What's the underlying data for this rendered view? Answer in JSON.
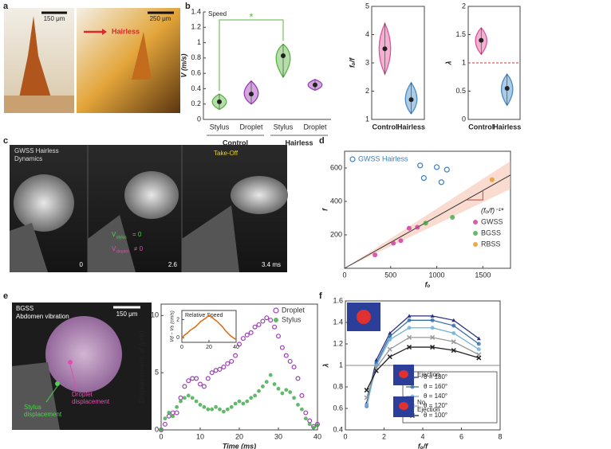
{
  "panel_labels": [
    "a",
    "b",
    "c",
    "d",
    "e",
    "f"
  ],
  "photos": {
    "a_scale1": "150 μm",
    "a_scale2": "250 μm",
    "a_hairless": "Hairless",
    "c_title": [
      "GWSS Hairless",
      "Dynamics"
    ],
    "c_takeoff": "Take-Off",
    "c_vs": [
      "V",
      "stylus",
      "= 0"
    ],
    "c_vd": [
      "V",
      "droplet",
      "≠ 0"
    ],
    "c_times": [
      "0",
      "2.6",
      "3.4 ms"
    ],
    "e_title": [
      "BGSS",
      "Abdomen vibration"
    ],
    "e_scale": "150 μm",
    "e_stylus": [
      "Stylus",
      "displacement"
    ],
    "e_droplet": [
      "Droplet",
      "displacement"
    ]
  },
  "chart_data": [
    {
      "type": "violin",
      "title": "Speed",
      "annotation": "*",
      "ylabel": "V (m/s)",
      "categories": [
        "Stylus",
        "Droplet",
        "Stylus",
        "Droplet"
      ],
      "groups": [
        "Control",
        "Hairless"
      ],
      "values": [
        0.23,
        0.33,
        0.83,
        0.45
      ],
      "ranges": [
        [
          0.13,
          0.33
        ],
        [
          0.2,
          0.5
        ],
        [
          0.55,
          0.98
        ],
        [
          0.38,
          0.52
        ]
      ],
      "colors": [
        "#5bb543",
        "#9b3fb5",
        "#5bb543",
        "#9b3fb5"
      ],
      "ylim": [
        0,
        1.4
      ],
      "yticks": [
        0,
        0.2,
        0.4,
        0.6,
        0.8,
        1,
        1.2,
        1.4
      ]
    },
    {
      "type": "violin",
      "ylabel": "fₒ/f",
      "categories": [
        "Control",
        "Hairless"
      ],
      "values": [
        3.5,
        1.7
      ],
      "ranges": [
        [
          2.6,
          4.4
        ],
        [
          1.2,
          2.3
        ]
      ],
      "colors": [
        "#e0559b",
        "#4a8cc4"
      ],
      "ylim": [
        1,
        5
      ],
      "yticks": [
        1,
        2,
        3,
        4,
        5
      ]
    },
    {
      "type": "violin",
      "ylabel": "λ",
      "categories": [
        "Control",
        "Hairless"
      ],
      "values": [
        1.4,
        0.55
      ],
      "ranges": [
        [
          1.15,
          1.62
        ],
        [
          0.25,
          0.8
        ]
      ],
      "colors": [
        "#e0559b",
        "#4a8cc4"
      ],
      "ylim": [
        0,
        2
      ],
      "yticks": [
        0,
        0.5,
        1,
        1.5,
        2
      ],
      "refline": 1
    },
    {
      "type": "scatter",
      "xlabel": "fₒ",
      "ylabel": "f",
      "annotation": "(fₒ/f)⁻¹*",
      "fit_slope": 0.31,
      "xlim": [
        0,
        1800
      ],
      "ylim": [
        0,
        700
      ],
      "xticks": [
        0,
        500,
        1000,
        1500
      ],
      "yticks": [
        200,
        400,
        600
      ],
      "series": [
        {
          "name": "GWSS Hairless",
          "color": "#3b7fbf",
          "marker": "open",
          "x": [
            820,
            860,
            1000,
            1050,
            1110
          ],
          "values": [
            615,
            540,
            605,
            515,
            590
          ]
        },
        {
          "name": "GWSS",
          "color": "#d0349b",
          "marker": "filled",
          "x": [
            330,
            530,
            610,
            700,
            790
          ],
          "values": [
            80,
            150,
            165,
            240,
            245
          ]
        },
        {
          "name": "BGSS",
          "color": "#3aa845",
          "marker": "filled",
          "x": [
            880,
            1170
          ],
          "values": [
            270,
            305
          ]
        },
        {
          "name": "RBSS",
          "color": "#e8951f",
          "marker": "filled",
          "x": [
            1600
          ],
          "values": [
            530
          ]
        }
      ]
    },
    {
      "type": "scatter",
      "xlabel": "Time (ms)",
      "ylabel": "Displacement, d (μm)",
      "xlim": [
        0,
        40
      ],
      "ylim": [
        0,
        11
      ],
      "xticks": [
        0,
        10,
        20,
        30,
        40
      ],
      "yticks": [
        0,
        5,
        10
      ],
      "x": [
        0,
        1,
        2,
        3,
        4,
        5,
        6,
        7,
        8,
        9,
        10,
        11,
        12,
        13,
        14,
        15,
        16,
        17,
        18,
        19,
        20,
        21,
        22,
        23,
        24,
        25,
        26,
        27,
        28,
        29,
        30,
        31,
        32,
        33,
        34,
        35,
        36,
        37,
        38,
        39,
        40
      ],
      "series": [
        {
          "name": "Droplet",
          "color": "#9b3fb5",
          "marker": "open",
          "values": [
            0,
            0.5,
            1.2,
            1.5,
            1.5,
            2.8,
            3.8,
            4.3,
            4.5,
            4.5,
            4.0,
            3.8,
            4.5,
            5.0,
            5.2,
            5.3,
            5.5,
            5.8,
            6.0,
            6.5,
            7.5,
            8.0,
            8.3,
            8.5,
            9.0,
            9.2,
            9.5,
            9.8,
            9.6,
            9.0,
            8.2,
            7.2,
            6.5,
            6.0,
            5.5,
            4.5,
            3.0,
            1.5,
            0.8,
            0.3,
            0.5
          ]
        },
        {
          "name": "Stylus",
          "color": "#3aa845",
          "marker": "filled",
          "values": [
            0,
            1.0,
            1.5,
            1.2,
            2.0,
            2.5,
            2.8,
            3.0,
            2.8,
            2.5,
            2.2,
            2.0,
            1.8,
            1.8,
            2.0,
            1.8,
            1.6,
            1.8,
            2.0,
            2.3,
            2.5,
            2.3,
            2.5,
            2.8,
            3.0,
            3.4,
            3.8,
            4.2,
            4.8,
            4.0,
            3.6,
            3.2,
            3.5,
            3.3,
            2.8,
            2.2,
            1.8,
            1.0,
            0.5,
            0.2,
            0.4
          ]
        }
      ]
    },
    {
      "type": "line",
      "title": "Relative Speed",
      "ylabel": "Vd − Vs (cm/s)",
      "xlim": [
        0,
        40
      ],
      "ylim": [
        -0.5,
        3
      ],
      "xticks": [
        0,
        20,
        40
      ],
      "yticks": [
        0,
        2
      ],
      "x": [
        0,
        2,
        4,
        6,
        8,
        10,
        12,
        14,
        16,
        18,
        20,
        22,
        24,
        26,
        28,
        30,
        32,
        34,
        36,
        38,
        40
      ],
      "series": [
        {
          "color": "#d9731c",
          "values": [
            0,
            0.3,
            0.5,
            0.8,
            1.0,
            1.2,
            1.5,
            1.8,
            2.0,
            2.2,
            2.5,
            2.3,
            2.0,
            1.8,
            1.5,
            1.2,
            0.8,
            0.5,
            0.2,
            0,
            -0.2
          ]
        }
      ]
    },
    {
      "type": "line",
      "xlabel": "fₒ/f",
      "ylabel": "λ",
      "annotations": [
        "Ejection",
        "No",
        "Ejection"
      ],
      "xlim": [
        0,
        8
      ],
      "ylim": [
        0.4,
        1.6
      ],
      "xticks": [
        0,
        2,
        4,
        6,
        8
      ],
      "yticks": [
        0.4,
        0.6,
        0.8,
        1,
        1.2,
        1.4,
        1.6
      ],
      "refline": 1,
      "x": [
        1.1,
        1.6,
        2.3,
        3.3,
        4.5,
        5.6,
        6.9
      ],
      "series": [
        {
          "name": "θ = 180°",
          "color": "#2c2f80",
          "marker": "triangle",
          "values": [
            0.65,
            1.05,
            1.3,
            1.46,
            1.46,
            1.42,
            1.25
          ]
        },
        {
          "name": "θ = 160°",
          "color": "#3a6ea8",
          "marker": "circle",
          "values": [
            0.62,
            1.02,
            1.27,
            1.42,
            1.42,
            1.37,
            1.2
          ]
        },
        {
          "name": "θ = 140°",
          "color": "#6fb0d8",
          "marker": "circle",
          "values": [
            0.63,
            1.0,
            1.24,
            1.35,
            1.35,
            1.3,
            1.15
          ]
        },
        {
          "name": "θ = 120°",
          "color": "#999999",
          "marker": "x",
          "values": [
            0.7,
            0.98,
            1.15,
            1.26,
            1.26,
            1.22,
            1.1
          ]
        },
        {
          "name": "θ = 100°",
          "color": "#222222",
          "marker": "x",
          "values": [
            0.77,
            0.95,
            1.08,
            1.17,
            1.17,
            1.14,
            1.07
          ]
        }
      ]
    }
  ]
}
